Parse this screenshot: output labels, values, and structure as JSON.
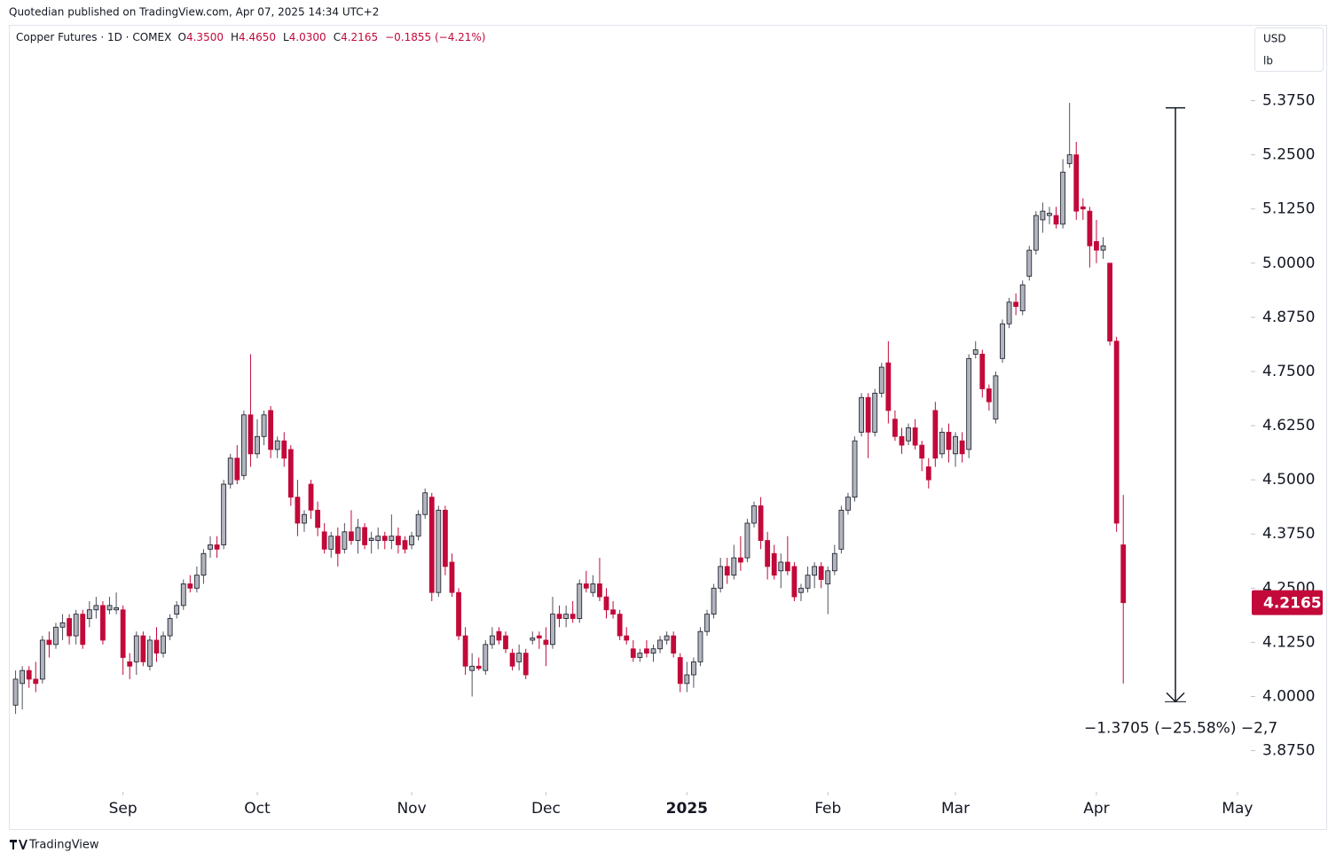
{
  "header": "Quotedian published on TradingView.com, Apr 07, 2025 14:34 UTC+2",
  "footer": "TradingView",
  "chart_data": {
    "type": "candlestick",
    "title": "Copper Futures · 1D · COMEX",
    "legend_values": [
      {
        "label": "O",
        "value": "4.3500"
      },
      {
        "label": "H",
        "value": "4.4650"
      },
      {
        "label": "L",
        "value": "4.0300"
      },
      {
        "label": "C",
        "value": "4.2165"
      }
    ],
    "change_text": "−0.1855 (−4.21%)",
    "currency": "USD",
    "unit": "lb",
    "up_color": "#b2b5be",
    "down_color": "#c2093a",
    "candles": [
      [
        3.98,
        4.06,
        3.96,
        4.04
      ],
      [
        4.03,
        4.07,
        3.97,
        4.06
      ],
      [
        4.06,
        4.07,
        4.02,
        4.04
      ],
      [
        4.04,
        4.08,
        4.01,
        4.03
      ],
      [
        4.04,
        4.14,
        4.03,
        4.13
      ],
      [
        4.13,
        4.15,
        4.09,
        4.12
      ],
      [
        4.12,
        4.17,
        4.11,
        4.16
      ],
      [
        4.16,
        4.19,
        4.13,
        4.17
      ],
      [
        4.18,
        4.19,
        4.12,
        4.14
      ],
      [
        4.14,
        4.2,
        4.12,
        4.19
      ],
      [
        4.19,
        4.2,
        4.11,
        4.12
      ],
      [
        4.18,
        4.22,
        4.16,
        4.2
      ],
      [
        4.2,
        4.23,
        4.18,
        4.21
      ],
      [
        4.21,
        4.22,
        4.12,
        4.13
      ],
      [
        4.2,
        4.23,
        4.19,
        4.21
      ],
      [
        4.2,
        4.24,
        4.19,
        4.205
      ],
      [
        4.2,
        4.21,
        4.05,
        4.09
      ],
      [
        4.08,
        4.1,
        4.04,
        4.07
      ],
      [
        4.08,
        4.15,
        4.05,
        4.14
      ],
      [
        4.14,
        4.15,
        4.07,
        4.08
      ],
      [
        4.07,
        4.14,
        4.06,
        4.13
      ],
      [
        4.13,
        4.16,
        4.08,
        4.1
      ],
      [
        4.1,
        4.15,
        4.09,
        4.14
      ],
      [
        4.14,
        4.19,
        4.13,
        4.18
      ],
      [
        4.19,
        4.22,
        4.18,
        4.21
      ],
      [
        4.21,
        4.27,
        4.2,
        4.26
      ],
      [
        4.26,
        4.28,
        4.24,
        4.25
      ],
      [
        4.25,
        4.3,
        4.24,
        4.28
      ],
      [
        4.28,
        4.34,
        4.26,
        4.33
      ],
      [
        4.34,
        4.37,
        4.32,
        4.35
      ],
      [
        4.35,
        4.37,
        4.32,
        4.34
      ],
      [
        4.35,
        4.5,
        4.34,
        4.49
      ],
      [
        4.49,
        4.56,
        4.48,
        4.55
      ],
      [
        4.55,
        4.58,
        4.49,
        4.5
      ],
      [
        4.51,
        4.66,
        4.5,
        4.65
      ],
      [
        4.65,
        4.79,
        4.53,
        4.56
      ],
      [
        4.56,
        4.64,
        4.55,
        4.6
      ],
      [
        4.6,
        4.66,
        4.58,
        4.65
      ],
      [
        4.66,
        4.67,
        4.55,
        4.57
      ],
      [
        4.57,
        4.6,
        4.55,
        4.59
      ],
      [
        4.59,
        4.61,
        4.53,
        4.55
      ],
      [
        4.57,
        4.58,
        4.44,
        4.46
      ],
      [
        4.46,
        4.5,
        4.37,
        4.4
      ],
      [
        4.4,
        4.43,
        4.38,
        4.42
      ],
      [
        4.49,
        4.5,
        4.41,
        4.43
      ],
      [
        4.43,
        4.45,
        4.37,
        4.39
      ],
      [
        4.38,
        4.4,
        4.33,
        4.34
      ],
      [
        4.34,
        4.38,
        4.32,
        4.37
      ],
      [
        4.37,
        4.39,
        4.3,
        4.33
      ],
      [
        4.34,
        4.4,
        4.33,
        4.38
      ],
      [
        4.38,
        4.43,
        4.35,
        4.36
      ],
      [
        4.36,
        4.41,
        4.33,
        4.39
      ],
      [
        4.39,
        4.4,
        4.34,
        4.35
      ],
      [
        4.36,
        4.38,
        4.33,
        4.365
      ],
      [
        4.36,
        4.39,
        4.34,
        4.37
      ],
      [
        4.37,
        4.38,
        4.34,
        4.36
      ],
      [
        4.36,
        4.42,
        4.34,
        4.37
      ],
      [
        4.37,
        4.39,
        4.33,
        4.35
      ],
      [
        4.36,
        4.37,
        4.33,
        4.34
      ],
      [
        4.35,
        4.38,
        4.34,
        4.37
      ],
      [
        4.37,
        4.43,
        4.36,
        4.42
      ],
      [
        4.42,
        4.48,
        4.41,
        4.47
      ],
      [
        4.46,
        4.47,
        4.22,
        4.24
      ],
      [
        4.24,
        4.44,
        4.23,
        4.43
      ],
      [
        4.43,
        4.44,
        4.28,
        4.3
      ],
      [
        4.31,
        4.33,
        4.23,
        4.24
      ],
      [
        4.24,
        4.25,
        4.13,
        4.14
      ],
      [
        4.14,
        4.16,
        4.05,
        4.07
      ],
      [
        4.06,
        4.1,
        4.0,
        4.07
      ],
      [
        4.07,
        4.09,
        4.06,
        4.065
      ],
      [
        4.06,
        4.13,
        4.05,
        4.12
      ],
      [
        4.12,
        4.16,
        4.11,
        4.14
      ],
      [
        4.15,
        4.16,
        4.12,
        4.13
      ],
      [
        4.14,
        4.15,
        4.1,
        4.11
      ],
      [
        4.1,
        4.11,
        4.06,
        4.07
      ],
      [
        4.08,
        4.12,
        4.06,
        4.1
      ],
      [
        4.1,
        4.11,
        4.04,
        4.05
      ],
      [
        4.13,
        4.15,
        4.12,
        4.135
      ],
      [
        4.14,
        4.15,
        4.11,
        4.135
      ],
      [
        4.13,
        4.16,
        4.07,
        4.12
      ],
      [
        4.12,
        4.23,
        4.11,
        4.19
      ],
      [
        4.19,
        4.21,
        4.16,
        4.18
      ],
      [
        4.18,
        4.21,
        4.16,
        4.19
      ],
      [
        4.19,
        4.22,
        4.17,
        4.18
      ],
      [
        4.18,
        4.27,
        4.17,
        4.26
      ],
      [
        4.26,
        4.29,
        4.24,
        4.25
      ],
      [
        4.24,
        4.28,
        4.23,
        4.26
      ],
      [
        4.26,
        4.32,
        4.22,
        4.23
      ],
      [
        4.23,
        4.25,
        4.18,
        4.2
      ],
      [
        4.2,
        4.22,
        4.18,
        4.19
      ],
      [
        4.19,
        4.2,
        4.13,
        4.14
      ],
      [
        4.14,
        4.16,
        4.12,
        4.13
      ],
      [
        4.11,
        4.13,
        4.08,
        4.09
      ],
      [
        4.09,
        4.11,
        4.08,
        4.1
      ],
      [
        4.11,
        4.13,
        4.09,
        4.1
      ],
      [
        4.1,
        4.12,
        4.08,
        4.11
      ],
      [
        4.11,
        4.14,
        4.1,
        4.13
      ],
      [
        4.13,
        4.15,
        4.12,
        4.14
      ],
      [
        4.14,
        4.15,
        4.09,
        4.1
      ],
      [
        4.09,
        4.1,
        4.01,
        4.03
      ],
      [
        4.03,
        4.08,
        4.01,
        4.05
      ],
      [
        4.05,
        4.09,
        4.02,
        4.08
      ],
      [
        4.08,
        4.16,
        4.07,
        4.15
      ],
      [
        4.15,
        4.2,
        4.14,
        4.19
      ],
      [
        4.19,
        4.26,
        4.18,
        4.25
      ],
      [
        4.25,
        4.32,
        4.24,
        4.3
      ],
      [
        4.3,
        4.32,
        4.26,
        4.28
      ],
      [
        4.28,
        4.35,
        4.27,
        4.32
      ],
      [
        4.32,
        4.37,
        4.29,
        4.31
      ],
      [
        4.32,
        4.41,
        4.31,
        4.4
      ],
      [
        4.4,
        4.45,
        4.39,
        4.44
      ],
      [
        4.44,
        4.46,
        4.34,
        4.36
      ],
      [
        4.36,
        4.38,
        4.27,
        4.3
      ],
      [
        4.33,
        4.35,
        4.27,
        4.28
      ],
      [
        4.29,
        4.33,
        4.25,
        4.31
      ],
      [
        4.31,
        4.37,
        4.28,
        4.29
      ],
      [
        4.3,
        4.31,
        4.22,
        4.23
      ],
      [
        4.24,
        4.26,
        4.22,
        4.25
      ],
      [
        4.25,
        4.3,
        4.24,
        4.28
      ],
      [
        4.28,
        4.31,
        4.25,
        4.3
      ],
      [
        4.3,
        4.31,
        4.25,
        4.27
      ],
      [
        4.26,
        4.3,
        4.19,
        4.29
      ],
      [
        4.29,
        4.35,
        4.28,
        4.33
      ],
      [
        4.34,
        4.44,
        4.33,
        4.43
      ],
      [
        4.43,
        4.47,
        4.42,
        4.46
      ],
      [
        4.46,
        4.6,
        4.45,
        4.59
      ],
      [
        4.61,
        4.7,
        4.6,
        4.69
      ],
      [
        4.69,
        4.7,
        4.55,
        4.61
      ],
      [
        4.61,
        4.71,
        4.6,
        4.7
      ],
      [
        4.7,
        4.77,
        4.69,
        4.76
      ],
      [
        4.77,
        4.82,
        4.63,
        4.66
      ],
      [
        4.64,
        4.66,
        4.59,
        4.6
      ],
      [
        4.6,
        4.62,
        4.56,
        4.58
      ],
      [
        4.59,
        4.63,
        4.58,
        4.62
      ],
      [
        4.62,
        4.64,
        4.57,
        4.58
      ],
      [
        4.58,
        4.59,
        4.52,
        4.55
      ],
      [
        4.53,
        4.55,
        4.48,
        4.5
      ],
      [
        4.66,
        4.68,
        4.53,
        4.55
      ],
      [
        4.56,
        4.62,
        4.55,
        4.61
      ],
      [
        4.61,
        4.63,
        4.54,
        4.57
      ],
      [
        4.56,
        4.61,
        4.53,
        4.6
      ],
      [
        4.59,
        4.61,
        4.54,
        4.56
      ],
      [
        4.57,
        4.79,
        4.55,
        4.78
      ],
      [
        4.79,
        4.82,
        4.78,
        4.8
      ],
      [
        4.79,
        4.8,
        4.69,
        4.71
      ],
      [
        4.71,
        4.72,
        4.66,
        4.68
      ],
      [
        4.64,
        4.75,
        4.63,
        4.74
      ],
      [
        4.78,
        4.87,
        4.77,
        4.86
      ],
      [
        4.86,
        4.92,
        4.85,
        4.91
      ],
      [
        4.91,
        4.93,
        4.88,
        4.9
      ],
      [
        4.89,
        4.96,
        4.88,
        4.95
      ],
      [
        4.97,
        5.04,
        4.96,
        5.03
      ],
      [
        5.03,
        5.12,
        5.02,
        5.11
      ],
      [
        5.1,
        5.14,
        5.07,
        5.12
      ],
      [
        5.11,
        5.13,
        5.09,
        5.115
      ],
      [
        5.11,
        5.13,
        5.08,
        5.09
      ],
      [
        5.09,
        5.24,
        5.08,
        5.21
      ],
      [
        5.23,
        5.37,
        5.22,
        5.25
      ],
      [
        5.25,
        5.28,
        5.1,
        5.12
      ],
      [
        5.13,
        5.15,
        5.1,
        5.125
      ],
      [
        5.12,
        5.13,
        4.99,
        5.04
      ],
      [
        5.05,
        5.1,
        5.0,
        5.03
      ],
      [
        5.03,
        5.06,
        5.01,
        5.04
      ],
      [
        5.0,
        5.0,
        4.81,
        4.82
      ],
      [
        4.82,
        4.83,
        4.38,
        4.4
      ],
      [
        4.35,
        4.465,
        4.03,
        4.2165
      ]
    ],
    "last_label": "4.2165",
    "xlim": [
      -1,
      184
    ],
    "xticks": [
      {
        "value": 16,
        "label": "Sep"
      },
      {
        "value": 36,
        "label": "Oct"
      },
      {
        "value": 59,
        "label": "Nov"
      },
      {
        "value": 79,
        "label": "Dec"
      },
      {
        "value": 100,
        "label": "2025"
      },
      {
        "value": 121,
        "label": "Feb"
      },
      {
        "value": 140,
        "label": "Mar"
      },
      {
        "value": 161,
        "label": "Apr"
      },
      {
        "value": 182,
        "label": "May"
      }
    ],
    "ylim": [
      3.78,
      5.55
    ],
    "yticks": [
      {
        "value": 3.875,
        "label": "3.8750"
      },
      {
        "value": 4,
        "label": "4.0000"
      },
      {
        "value": 4.125,
        "label": "4.1250"
      },
      {
        "value": 4.25,
        "label": "4.2500"
      },
      {
        "value": 4.375,
        "label": "4.3750"
      },
      {
        "value": 4.5,
        "label": "4.5000"
      },
      {
        "value": 4.625,
        "label": "4.6250"
      },
      {
        "value": 4.75,
        "label": "4.7500"
      },
      {
        "value": 4.875,
        "label": "4.8750"
      },
      {
        "value": 5,
        "label": "5.0000"
      },
      {
        "value": 5.125,
        "label": "5.1250"
      },
      {
        "value": 5.25,
        "label": "5.2500"
      },
      {
        "value": 5.375,
        "label": "5.3750"
      }
    ],
    "measure": {
      "from": 5.3585,
      "to": 3.988,
      "label": "−1.3705 (−25.58%) −2,7"
    }
  }
}
